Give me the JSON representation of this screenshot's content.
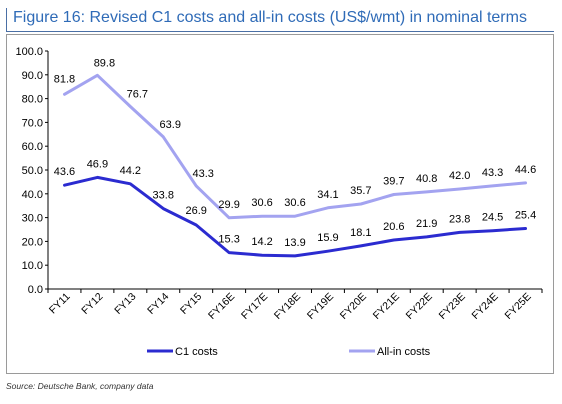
{
  "figure_title": "Figure 16: Revised C1 costs and all-in costs (US$/wmt) in nominal terms",
  "source": "Source: Deutsche Bank, company data",
  "chart_data": {
    "type": "line",
    "title": "Figure 16: Revised C1 costs and all-in costs (US$/wmt) in nominal terms",
    "categories": [
      "FY11",
      "FY12",
      "FY13",
      "FY14",
      "FY15",
      "FY16E",
      "FY17E",
      "FY18E",
      "FY19E",
      "FY20E",
      "FY21E",
      "FY22E",
      "FY23E",
      "FY24E",
      "FY25E"
    ],
    "ylim": [
      0,
      100
    ],
    "yticks": [
      "0.0",
      "10.0",
      "20.0",
      "30.0",
      "40.0",
      "50.0",
      "60.0",
      "70.0",
      "80.0",
      "90.0",
      "100.0"
    ],
    "grid": false,
    "legend_position": "bottom",
    "series": [
      {
        "name": "C1 costs",
        "color": "#2b2bd0",
        "values": [
          43.6,
          46.9,
          44.2,
          33.8,
          26.9,
          15.3,
          14.2,
          13.9,
          15.9,
          18.1,
          20.6,
          21.9,
          23.8,
          24.5,
          25.4
        ],
        "labels": [
          "43.6",
          "46.9",
          "44.2",
          "33.8",
          "26.9",
          "15.3",
          "14.2",
          "13.9",
          "15.9",
          "18.1",
          "20.6",
          "21.9",
          "23.8",
          "24.5",
          "25.4"
        ]
      },
      {
        "name": "All-in costs",
        "color": "#a3a3f0",
        "values": [
          81.8,
          89.8,
          76.7,
          63.9,
          43.3,
          29.9,
          30.6,
          30.6,
          34.1,
          35.7,
          39.7,
          40.8,
          42.0,
          43.3,
          44.6
        ],
        "labels": [
          "81.8",
          "89.8",
          "76.7",
          "63.9",
          "43.3",
          "29.9",
          "30.6",
          "30.6",
          "34.1",
          "35.7",
          "39.7",
          "40.8",
          "42.0",
          "43.3",
          "44.6"
        ]
      }
    ]
  }
}
